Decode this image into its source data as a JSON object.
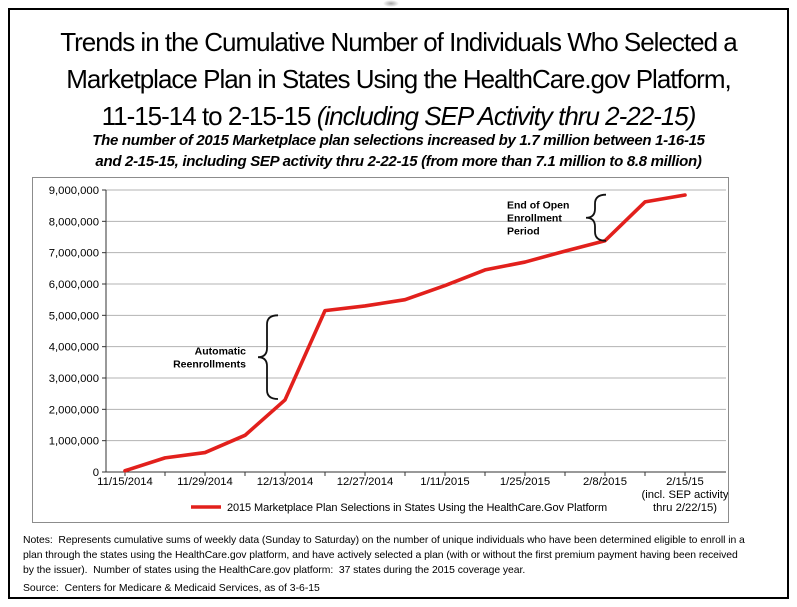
{
  "figure": {
    "title": {
      "line1": "Trends in the Cumulative Number of Individuals Who Selected a",
      "line2": "Marketplace Plan in States Using the HealthCare.gov Platform,",
      "line3_regular": "11-15-14 to 2-15-15",
      "line3_italic": " (including SEP Activity thru 2-22-15)"
    },
    "subtitle": {
      "line1": "The number of 2015 Marketplace plan selections increased by 1.7 million between 1-16-15",
      "line2": "and 2-15-15, including SEP activity thru 2-22-15 (from more than 7.1 million to 8.8 million)"
    }
  },
  "notes": {
    "lines": [
      "Notes:  Represents cumulative sums of weekly data (Sunday to Saturday) on the number of unique individuals who have been determined eligible to enroll in a",
      "plan through the states using the HealthCare.gov platform, and have actively selected a plan (with or without the first premium payment having been received",
      "by the issuer).  Number of states using the HealthCare.gov platform:  37 states during the 2015 coverage year."
    ],
    "source": "Source:  Centers for Medicare & Medicaid Services, as of 3-6-15"
  },
  "chart_data": {
    "type": "line",
    "grid": "horizontal",
    "legend_position": "bottom-center",
    "y_axis": {
      "min": 0,
      "max": 9000000,
      "tick_interval": 1000000,
      "tick_labels": [
        "0",
        "1,000,000",
        "2,000,000",
        "3,000,000",
        "4,000,000",
        "5,000,000",
        "6,000,000",
        "7,000,000",
        "8,000,000",
        "9,000,000"
      ]
    },
    "x_axis": {
      "slots": [
        "11/15/2014",
        "11/22/2014",
        "11/29/2014",
        "12/6/2014",
        "12/13/2014",
        "12/20/2014",
        "12/27/2014",
        "1/3/2015",
        "1/11/2015",
        "1/18/2015",
        "1/25/2015",
        "2/1/2015",
        "2/8/2015",
        "2/15/2015",
        "2/22/2015"
      ],
      "tick_labels": [
        {
          "slot": 0,
          "lines": [
            "11/15/2014"
          ]
        },
        {
          "slot": 2,
          "lines": [
            "11/29/2014"
          ]
        },
        {
          "slot": 4,
          "lines": [
            "12/13/2014"
          ]
        },
        {
          "slot": 6,
          "lines": [
            "12/27/2014"
          ]
        },
        {
          "slot": 8,
          "lines": [
            "1/11/2015"
          ]
        },
        {
          "slot": 10,
          "lines": [
            "1/25/2015"
          ]
        },
        {
          "slot": 12,
          "lines": [
            "2/8/2015"
          ]
        },
        {
          "slot": 14,
          "lines": [
            "2/15/15",
            "(incl. SEP activity",
            "thru 2/22/15)"
          ]
        }
      ]
    },
    "series": [
      {
        "name": "2015 Marketplace Plan Selections in States Using the HealthCare.Gov Platform",
        "color": "#e2201c",
        "points": [
          {
            "date": "11/15/2014",
            "value": 40000
          },
          {
            "date": "11/22/2014",
            "value": 450000
          },
          {
            "date": "11/29/2014",
            "value": 620000
          },
          {
            "date": "12/6/2014",
            "value": 1170000
          },
          {
            "date": "12/13/2014",
            "value": 2300000
          },
          {
            "date": "12/20/2014",
            "value": 5150000
          },
          {
            "date": "12/27/2014",
            "value": 5300000
          },
          {
            "date": "1/3/2015",
            "value": 5500000
          },
          {
            "date": "1/11/2015",
            "value": 5950000
          },
          {
            "date": "1/18/2015",
            "value": 6450000
          },
          {
            "date": "1/25/2015",
            "value": 6700000
          },
          {
            "date": "2/1/2015",
            "value": 7050000
          },
          {
            "date": "2/8/2015",
            "value": 7380000
          },
          {
            "date": "2/15/2015",
            "value": 8620000
          },
          {
            "date": "2/22/2015",
            "value": 8840000
          }
        ]
      }
    ],
    "annotations": [
      {
        "lines": [
          "Automatic",
          "Reenrollments"
        ],
        "value_from": 2330000,
        "value_to": 5000000,
        "slot": 3.55,
        "text_anchor": "end",
        "text_dx": -21
      },
      {
        "lines": [
          "End of Open",
          "Enrollment",
          "Period"
        ],
        "value_from": 7380000,
        "value_to": 8850000,
        "slot": 11.75,
        "text_anchor": "start",
        "text_dx": -88
      }
    ],
    "colors": {
      "line": "#e2201c",
      "gridline": "#b3b3b3",
      "axis": "#333333",
      "frame_border": "#8c8c8c",
      "annotation": "#111111"
    }
  }
}
